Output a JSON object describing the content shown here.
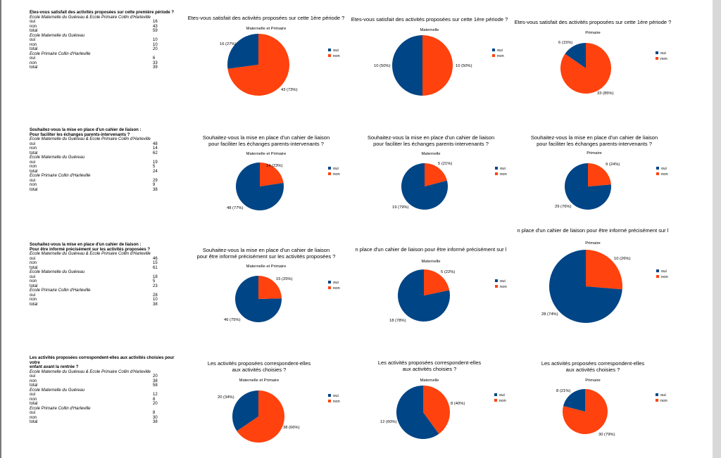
{
  "colors": {
    "oui": "#004586",
    "non": "#ff420e"
  },
  "blocks": [
    {
      "question": "Etes-vous satisfait des activités proposées sur cette première période ?",
      "question2": "",
      "sections": [
        {
          "name": "Ecole Maternelle du Guéreau & Ecole Primaire Collin d'Harleville",
          "rows": [
            [
              "oui",
              "16"
            ],
            [
              "non",
              "43"
            ],
            [
              "total",
              "59"
            ]
          ]
        },
        {
          "name": "Ecole Maternelle du Guéreau",
          "rows": [
            [
              "oui",
              "10"
            ],
            [
              "non",
              "10"
            ],
            [
              "total",
              "20"
            ]
          ]
        },
        {
          "name": "Ecole Primaire Collin d'Harleville",
          "rows": [
            [
              "oui",
              "6"
            ],
            [
              "non",
              "33"
            ],
            [
              "total",
              "39"
            ]
          ]
        }
      ]
    },
    {
      "question": "Souhaitez-vous la mise en place d'un cahier de liaison :",
      "question2": "Pour faciliter les échanges parents-intervenants ?",
      "sections": [
        {
          "name": "Ecole Maternelle du Guéreau & Ecole Primaire Collin d'Harleville",
          "rows": [
            [
              "oui",
              "48"
            ],
            [
              "non",
              "14"
            ],
            [
              "total",
              "62"
            ]
          ]
        },
        {
          "name": "Ecole Maternelle du Guéreau",
          "rows": [
            [
              "oui",
              "19"
            ],
            [
              "non",
              "5"
            ],
            [
              "total",
              "24"
            ]
          ]
        },
        {
          "name": "Ecole Primaire Collin d'Harleville",
          "rows": [
            [
              "oui",
              "29"
            ],
            [
              "non",
              "9"
            ],
            [
              "total",
              "38"
            ]
          ]
        }
      ]
    },
    {
      "question": "Souhaitez-vous la mise en place d'un cahier de liaison :",
      "question2": "Pour être informé précisément sur les activités proposées ?",
      "sections": [
        {
          "name": "Ecole Maternelle du Guéreau & Ecole Primaire Collin d'Harleville",
          "rows": [
            [
              "oui",
              "46"
            ],
            [
              "non",
              "15"
            ],
            [
              "total",
              "61"
            ]
          ]
        },
        {
          "name": "Ecole Maternelle du Guéreau",
          "rows": [
            [
              "oui",
              "18"
            ],
            [
              "non",
              "5"
            ],
            [
              "total",
              "23"
            ]
          ]
        },
        {
          "name": "Ecole Primaire Collin d'Harleville",
          "rows": [
            [
              "oui",
              "28"
            ],
            [
              "non",
              "10"
            ],
            [
              "total",
              "38"
            ]
          ]
        }
      ]
    },
    {
      "question": "Les activités proposées correspondent-elles aux activités choisies pour votre",
      "question2": "enfant avant la rentrée ?",
      "sections": [
        {
          "name": "Ecole Maternelle du Guéreau & Ecole Primaire Collin d'Harleville",
          "rows": [
            [
              "oui",
              "20"
            ],
            [
              "non",
              "38"
            ],
            [
              "total",
              "58"
            ]
          ]
        },
        {
          "name": "Ecole Maternelle du Guéreau",
          "rows": [
            [
              "oui",
              "12"
            ],
            [
              "non",
              "8"
            ],
            [
              "total",
              "20"
            ]
          ]
        },
        {
          "name": "Ecole Primaire Collin d'Harleville",
          "rows": [
            [
              "oui",
              "8"
            ],
            [
              "non",
              "30"
            ],
            [
              "total",
              "38"
            ]
          ]
        }
      ]
    }
  ],
  "chart_data": [
    {
      "type": "pie",
      "title": [
        "Etes-vous satisfait des activités proposées sur cette 1ère période ?"
      ],
      "subtitle": "Maternelle et Primaire",
      "categories": [
        "oui",
        "non"
      ],
      "values": [
        16,
        43
      ],
      "labels": [
        "16 (27%)",
        "43 (73%)"
      ],
      "legend": [
        "oui",
        "non"
      ]
    },
    {
      "type": "pie",
      "title": [
        "Etes-vous satisfait des activités proposées sur cette 1ère période ?"
      ],
      "subtitle": "Maternelle",
      "categories": [
        "oui",
        "non"
      ],
      "values": [
        10,
        10
      ],
      "labels": [
        "10 (50%)",
        "10 (50%)"
      ],
      "legend": [
        "oui",
        "non"
      ]
    },
    {
      "type": "pie",
      "title": [
        "Etes-vous satisfait des activités proposées sur cette 1ère période ?"
      ],
      "subtitle": "Primaire",
      "categories": [
        "oui",
        "non"
      ],
      "values": [
        6,
        33
      ],
      "labels": [
        "6 (15%)",
        "33 (85%)"
      ],
      "legend": [
        "oui",
        "non"
      ]
    },
    {
      "type": "pie",
      "title": [
        "Souhaitez-vous la mise en place d'un cahier de liaison",
        "pour faciliter les échanges parents-intervenants ?"
      ],
      "subtitle": "Maternelle et Primaire",
      "categories": [
        "oui",
        "non"
      ],
      "values": [
        48,
        14
      ],
      "labels": [
        "48 (77%)",
        "14 (23%)"
      ],
      "legend": [
        "oui",
        "non"
      ]
    },
    {
      "type": "pie",
      "title": [
        "Souhaitez-vous la mise en place d'un cahier de liaison",
        "pour faciliter les échanges parents-intervenants ?"
      ],
      "subtitle": "Maternelle",
      "categories": [
        "oui",
        "non"
      ],
      "values": [
        19,
        5
      ],
      "labels": [
        "19 (79%)",
        "5 (21%)"
      ],
      "legend": [
        "oui",
        "non"
      ]
    },
    {
      "type": "pie",
      "title": [
        "Souhaitez-vous la mise en place d'un cahier de liaison",
        "pour faciliter les échanges parents-intervenants ?"
      ],
      "subtitle": "Primaire",
      "categories": [
        "oui",
        "non"
      ],
      "values": [
        29,
        9
      ],
      "labels": [
        "29 (76%)",
        "9 (24%)"
      ],
      "legend": [
        "oui",
        "non"
      ]
    },
    {
      "type": "pie",
      "title": [
        "Souhaitez-vous la mise en place d'un cahier de liaison",
        "pour être informé précisément sur les activités proposées ?"
      ],
      "subtitle": "Maternelle et Primaire",
      "categories": [
        "oui",
        "non"
      ],
      "values": [
        46,
        15
      ],
      "labels": [
        "46 (75%)",
        "15 (25%)"
      ],
      "legend": [
        "oui",
        "non"
      ]
    },
    {
      "type": "pie",
      "title": [
        "n place d'un cahier de liaison pour être informé précisément sur l"
      ],
      "subtitle": "Maternelle",
      "categories": [
        "oui",
        "non"
      ],
      "values": [
        18,
        5
      ],
      "labels": [
        "18 (78%)",
        "5 (22%)"
      ],
      "legend": [
        "oui",
        "non"
      ]
    },
    {
      "type": "pie",
      "title": [
        "n place d'un cahier de liaison pour être informé précisément sur l"
      ],
      "subtitle": "Primaire",
      "categories": [
        "oui",
        "non"
      ],
      "values": [
        28,
        10
      ],
      "labels": [
        "28 (74%)",
        "10 (26%)"
      ],
      "legend": [
        "oui",
        "non"
      ]
    },
    {
      "type": "pie",
      "title": [
        "Les activités proposées correspondent-elles",
        "aux activités choisies ?"
      ],
      "subtitle": "Maternelle et Primaire",
      "categories": [
        "oui",
        "non"
      ],
      "values": [
        20,
        38
      ],
      "labels": [
        "20 (34%)",
        "38 (66%)"
      ],
      "legend": [
        "oui",
        "non"
      ]
    },
    {
      "type": "pie",
      "title": [
        "Les activités proposées correspondent-elles",
        "aux activités choisies ?"
      ],
      "subtitle": "Maternelle",
      "categories": [
        "oui",
        "non"
      ],
      "values": [
        12,
        8
      ],
      "labels": [
        "12 (60%)",
        "8 (40%)"
      ],
      "legend": [
        "oui",
        "non"
      ]
    },
    {
      "type": "pie",
      "title": [
        "Les activités proposées correspondent-elles",
        "aux activités choisies ?"
      ],
      "subtitle": "Primaire",
      "categories": [
        "oui",
        "non"
      ],
      "values": [
        8,
        30
      ],
      "labels": [
        "8 (21%)",
        "30 (79%)"
      ],
      "legend": [
        "oui",
        "non"
      ]
    }
  ]
}
